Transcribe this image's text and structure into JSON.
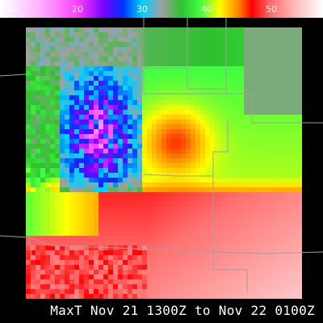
{
  "colorbar": {
    "ticks": [
      {
        "label": "10",
        "value": 10
      },
      {
        "label": "20",
        "value": 20
      },
      {
        "label": "30",
        "value": 30
      },
      {
        "label": "40",
        "value": 40
      },
      {
        "label": "50",
        "value": 50
      }
    ],
    "min": 8,
    "max": 58,
    "stops": [
      {
        "v": 8,
        "c": "#ffffff"
      },
      {
        "v": 14,
        "c": "#ffb4ff"
      },
      {
        "v": 20,
        "c": "#ff40ff"
      },
      {
        "v": 24,
        "c": "#7a00ff"
      },
      {
        "v": 27,
        "c": "#0030ff"
      },
      {
        "v": 30,
        "c": "#00d0ff"
      },
      {
        "v": 33,
        "c": "#a0a0a0"
      },
      {
        "v": 36,
        "c": "#30c030"
      },
      {
        "v": 39,
        "c": "#40ff40"
      },
      {
        "v": 42,
        "c": "#ffff00"
      },
      {
        "v": 45,
        "c": "#ff8000"
      },
      {
        "v": 47,
        "c": "#ff0000"
      },
      {
        "v": 50,
        "c": "#ff7070"
      },
      {
        "v": 54,
        "c": "#ffc0c0"
      },
      {
        "v": 58,
        "c": "#ffffff"
      }
    ]
  },
  "map": {
    "variable": "MaxT",
    "boundary_color": "#a0a0a0"
  },
  "caption": {
    "text": "MaxT  Nov 21 1300Z to Nov 22 0100Z"
  }
}
